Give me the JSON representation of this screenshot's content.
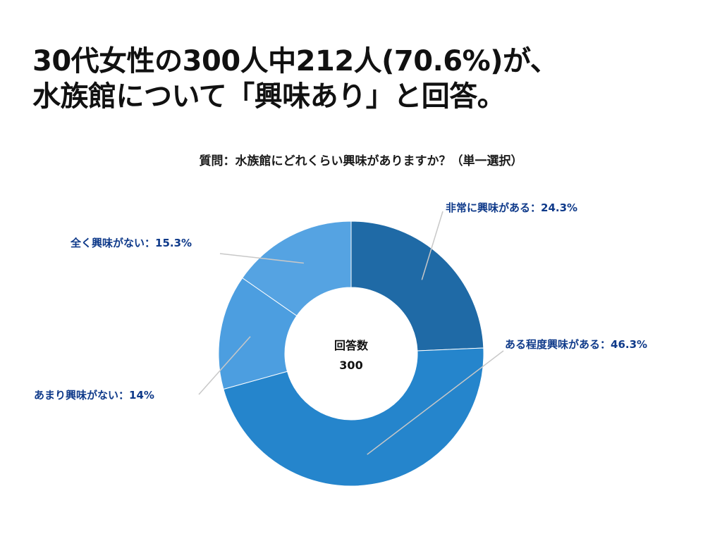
{
  "headline": {
    "line1": "30代女性の300人中212人(70.6%)が、",
    "line2": "水族館について「興味あり」と回答。"
  },
  "chart_data": {
    "type": "pie",
    "title": "質問：水族館にどれくらい興味がありますか？（単一選択）",
    "center_label": "回答数",
    "center_value": "300",
    "slices": [
      {
        "name": "非常に興味がある",
        "label": "非常に興味がある：24.3%",
        "value": 24.3,
        "color": "#1f6aa6"
      },
      {
        "name": "ある程度興味がある",
        "label": "ある程度興味がある：46.3%",
        "value": 46.3,
        "color": "#2585cc"
      },
      {
        "name": "あまり興味がない",
        "label": "あまり興味がない：14%",
        "value": 14.0,
        "color": "#4c9ee0"
      },
      {
        "name": "全く興味がない",
        "label": "全く興味がない：15.3%",
        "value": 15.3,
        "color": "#55a3e2"
      }
    ]
  }
}
